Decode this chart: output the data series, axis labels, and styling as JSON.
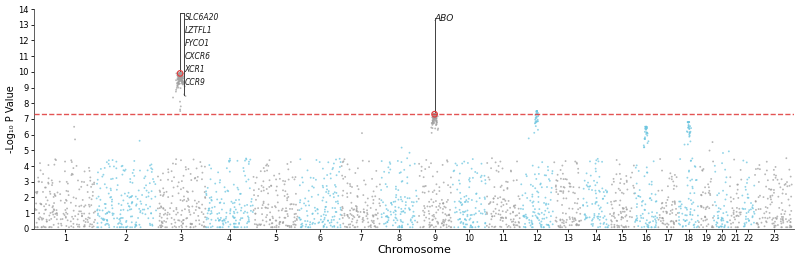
{
  "title": "",
  "xlabel": "Chromosome",
  "ylabel": "-Log₁₀ P Value",
  "ylim": [
    0,
    14
  ],
  "yticks": [
    0,
    1,
    2,
    3,
    4,
    5,
    6,
    7,
    8,
    9,
    10,
    11,
    12,
    13,
    14
  ],
  "significance_line": 7.3,
  "significance_color": "#e04040",
  "chr_colors": [
    "#a0a0a0",
    "#6ec6e0"
  ],
  "highlight_color": "#e04040",
  "annotation_chr3_genes": [
    "SLC6A20",
    "LZTFL1",
    "FYCO1",
    "CXCR6",
    "XCR1",
    "CCR9"
  ],
  "annotation_chr9_gene": "ABO",
  "n_chromosomes": 23,
  "random_seed": 42,
  "background_color": "#ffffff",
  "point_size": 1.8,
  "point_alpha": 0.75
}
